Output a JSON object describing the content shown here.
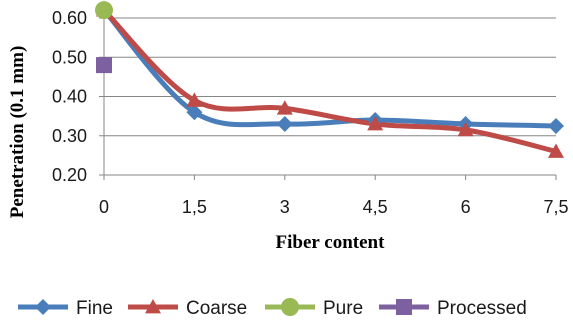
{
  "chart_data": {
    "type": "line",
    "title": "",
    "xlabel": "Fiber content",
    "ylabel": "Penetration (0.1 mm)",
    "x": [
      0,
      1.5,
      3,
      4.5,
      6,
      7.5
    ],
    "x_tick_labels": [
      "0",
      "1,5",
      "3",
      "4,5",
      "6",
      "7,5"
    ],
    "y_tick_labels": [
      "0.20",
      "0.30",
      "0.40",
      "0.50",
      "0.60"
    ],
    "ylim": [
      0.2,
      0.6
    ],
    "grid": true,
    "legend_position": "bottom",
    "series": [
      {
        "name": "Fine",
        "color": "#4a7ebb",
        "marker": "diamond",
        "x": [
          0,
          1.5,
          3,
          4.5,
          6,
          7.5
        ],
        "values": [
          0.62,
          0.36,
          0.33,
          0.34,
          0.33,
          0.325
        ]
      },
      {
        "name": "Coarse",
        "color": "#be4b48",
        "marker": "triangle",
        "x": [
          0,
          1.5,
          3,
          4.5,
          6,
          7.5
        ],
        "values": [
          0.62,
          0.39,
          0.37,
          0.33,
          0.315,
          0.26
        ]
      },
      {
        "name": "Pure",
        "color": "#98b954",
        "marker": "circle",
        "x": [
          0
        ],
        "values": [
          0.62
        ]
      },
      {
        "name": "Processed",
        "color": "#7d60a0",
        "marker": "square",
        "x": [
          0
        ],
        "values": [
          0.48
        ]
      }
    ]
  }
}
